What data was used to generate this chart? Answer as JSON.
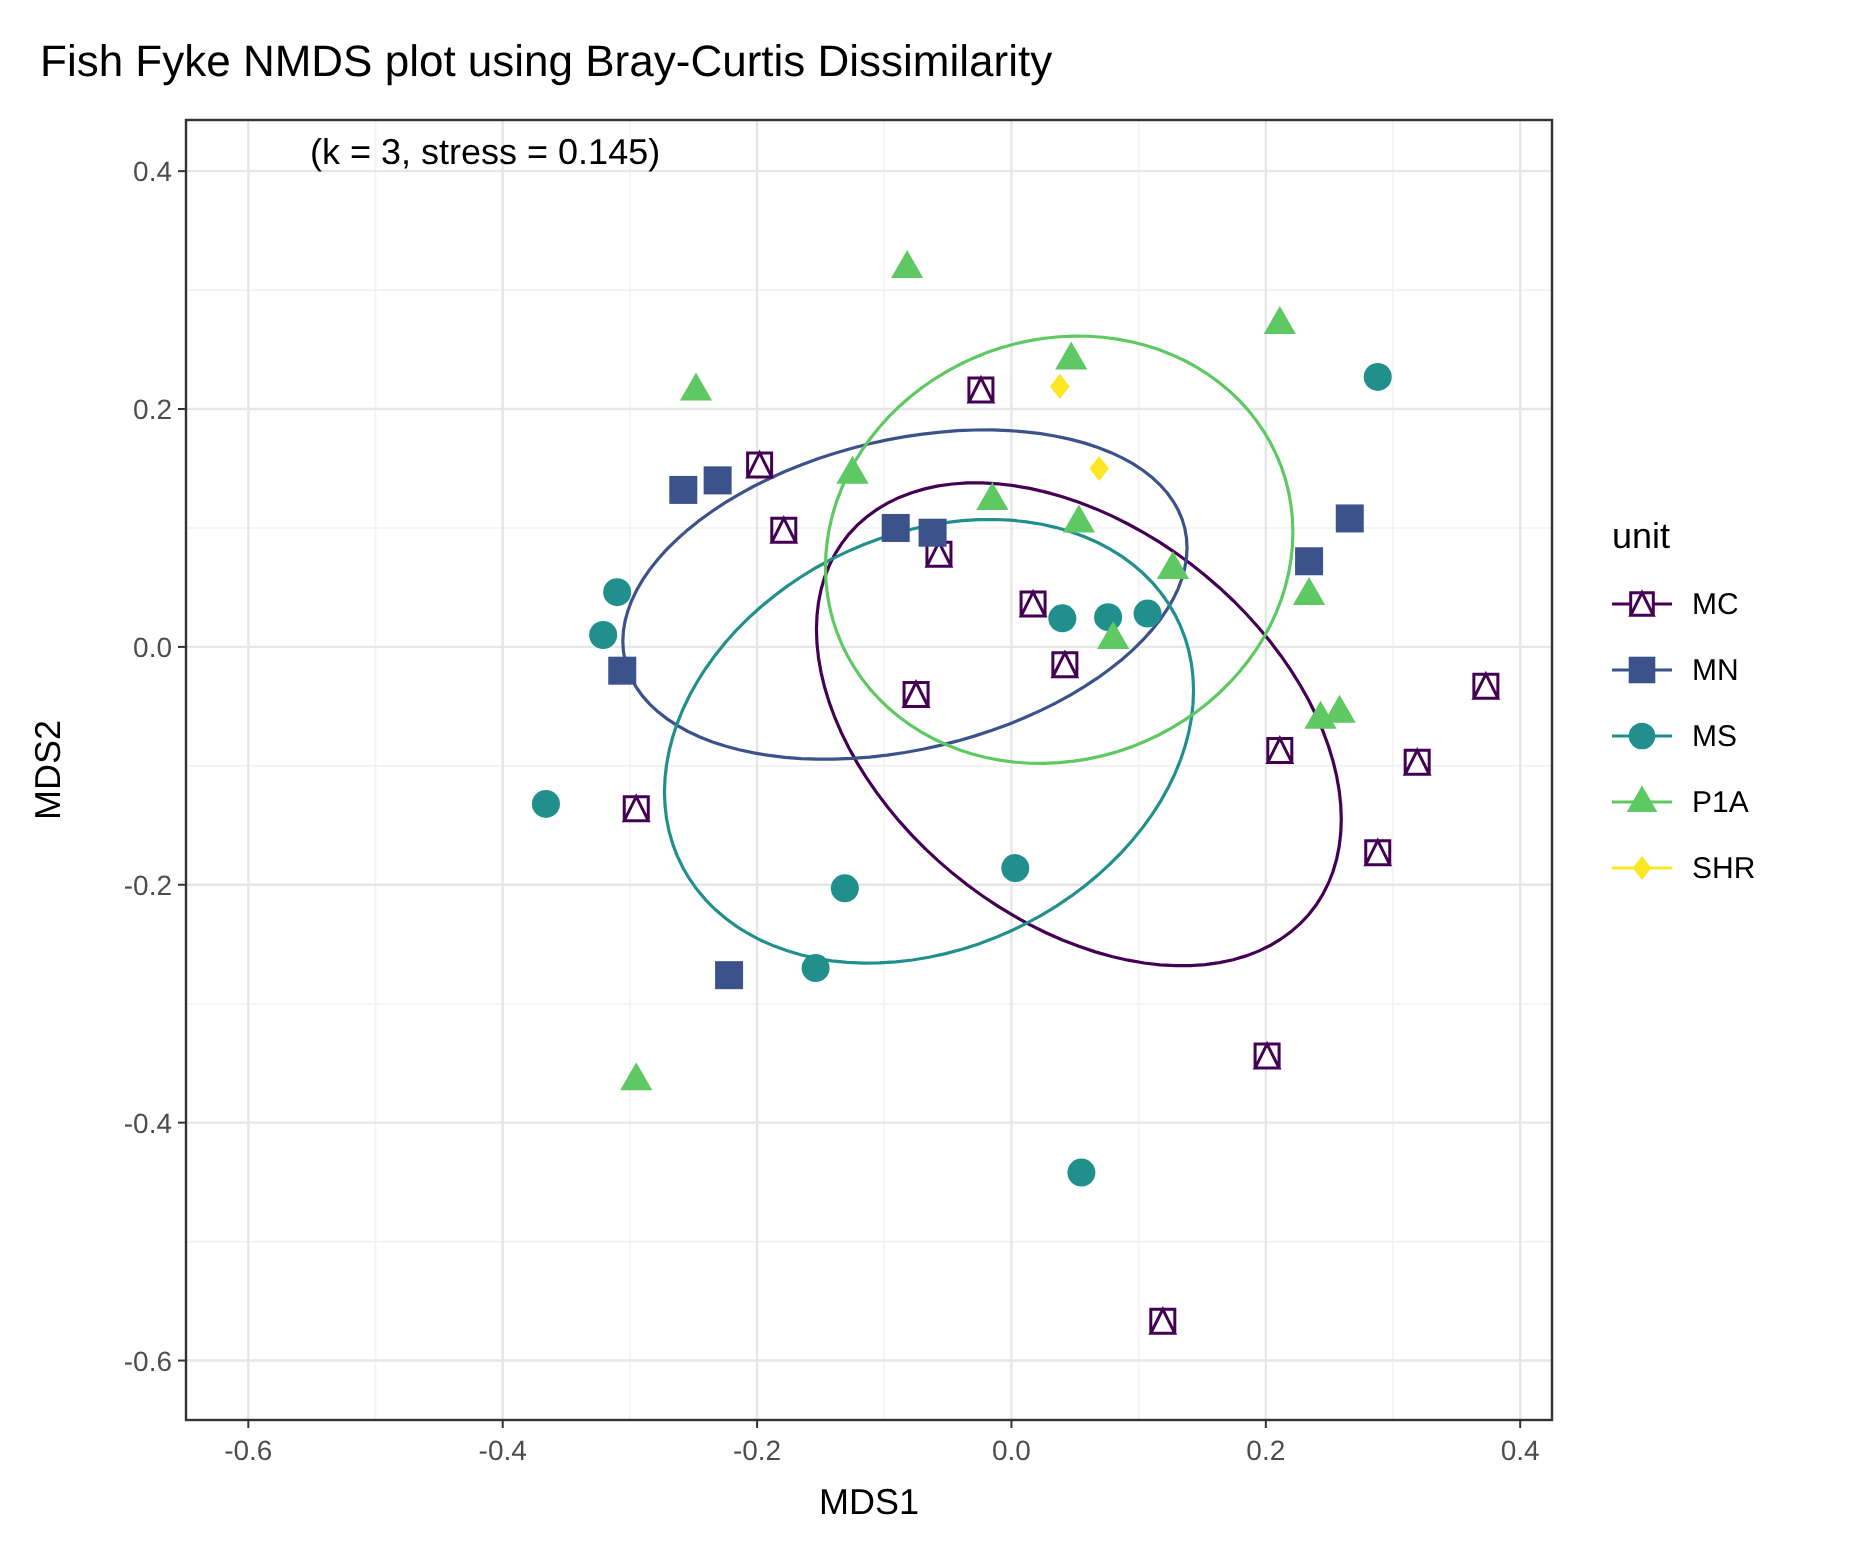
{
  "chart_data": {
    "type": "scatter",
    "title": "Fish Fyke NMDS plot using Bray-Curtis Dissimilarity",
    "xlabel": "MDS1",
    "ylabel": "MDS2",
    "legend_title": "unit",
    "legend": "right",
    "grid": true,
    "annotations": [
      "(k = 3, stress = 0.145)"
    ],
    "xlim": [
      -0.649,
      0.425
    ],
    "ylim": [
      -0.65,
      0.443
    ],
    "xticks": [
      -0.6,
      -0.4,
      -0.2,
      {
        "value": 0,
        "label": "0.0"
      },
      0.2,
      0.4
    ],
    "yticks": [
      -0.6,
      -0.4,
      -0.2,
      {
        "value": 0,
        "label": "0.0"
      },
      0.2,
      0.4
    ],
    "series": [
      {
        "name": "MC",
        "color": "#440154",
        "marker": "square",
        "x": [
          -0.024,
          -0.198,
          -0.179,
          -0.057,
          0.017,
          -0.075,
          0.042,
          -0.295,
          0.211,
          0.319,
          0.373,
          0.288,
          0.201,
          0.119
        ],
        "values": [
          0.216,
          0.153,
          0.098,
          0.078,
          0.036,
          -0.04,
          -0.015,
          -0.136,
          -0.087,
          -0.097,
          -0.033,
          -0.173,
          -0.344,
          -0.567
        ]
      },
      {
        "name": "MN",
        "color": "#3b528b",
        "marker": "square",
        "x": [
          -0.258,
          -0.231,
          -0.306,
          -0.091,
          -0.062,
          0.266,
          0.234,
          -0.222
        ],
        "values": [
          0.132,
          0.14,
          -0.02,
          0.1,
          0.096,
          0.108,
          0.072,
          -0.276
        ]
      },
      {
        "name": "MS",
        "color": "#21908c",
        "marker": "circle",
        "x": [
          -0.31,
          -0.321,
          -0.366,
          -0.131,
          -0.154,
          0.003,
          0.055,
          0.04,
          0.076,
          0.107,
          0.288
        ],
        "values": [
          0.046,
          0.01,
          -0.132,
          -0.203,
          -0.27,
          -0.186,
          -0.442,
          0.024,
          0.025,
          0.028,
          0.227
        ]
      },
      {
        "name": "P1A",
        "color": "#5ec962",
        "marker": "triangle",
        "x": [
          -0.248,
          -0.125,
          -0.082,
          0.211,
          0.047,
          -0.015,
          0.053,
          0.127,
          0.234,
          0.08,
          0.243,
          0.258,
          -0.295
        ],
        "values": [
          0.216,
          0.146,
          0.319,
          0.272,
          0.242,
          0.124,
          0.105,
          0.066,
          0.044,
          0.007,
          -0.06,
          -0.055,
          -0.364
        ]
      },
      {
        "name": "SHR",
        "color": "#fde725",
        "marker": "diamond",
        "x": [
          0.038,
          0.069
        ],
        "values": [
          0.219,
          0.15
        ]
      }
    ]
  }
}
